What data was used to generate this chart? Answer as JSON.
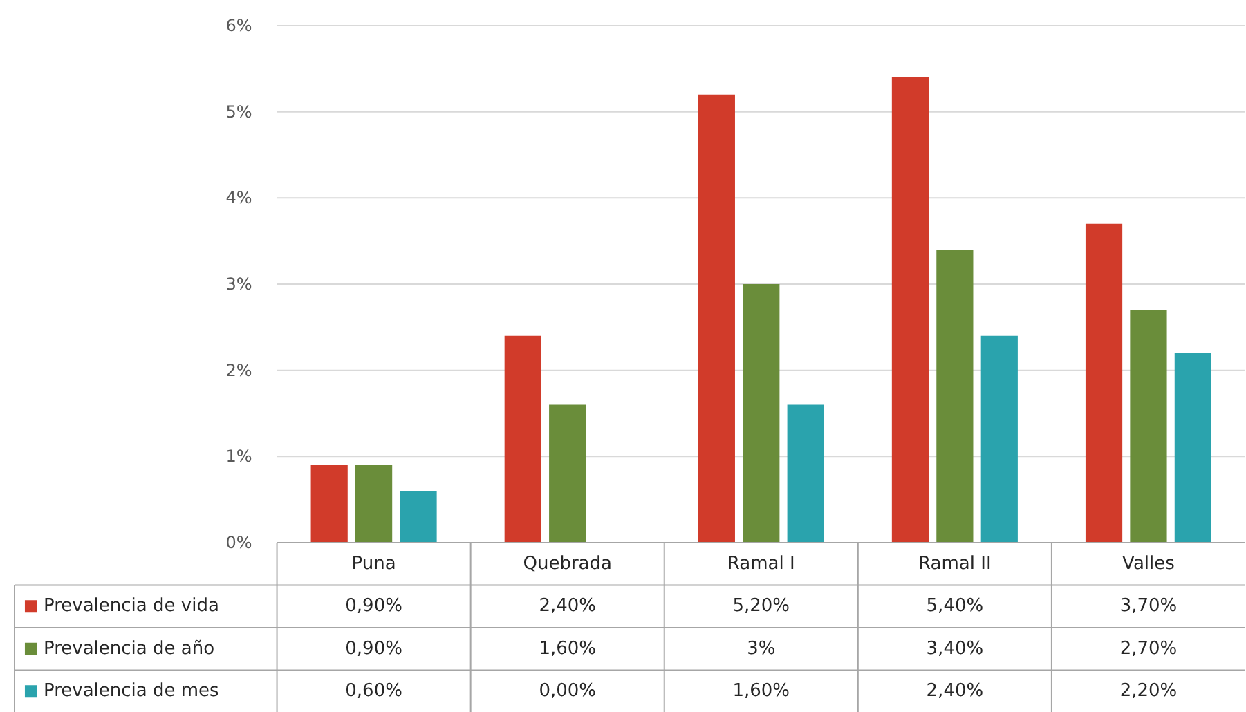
{
  "chart_data": {
    "type": "bar",
    "categories": [
      "Puna",
      "Quebrada",
      "Ramal I",
      "Ramal II",
      "Valles"
    ],
    "series": [
      {
        "name": "Prevalencia de vida",
        "color": "#d13b2a",
        "values": [
          0.9,
          2.4,
          5.2,
          5.4,
          3.7
        ],
        "value_labels": [
          "0,90%",
          "2,40%",
          "5,20%",
          "5,40%",
          "3,70%"
        ]
      },
      {
        "name": "Prevalencia de año",
        "color": "#6a8d3a",
        "values": [
          0.9,
          1.6,
          3,
          3.4,
          2.7
        ],
        "value_labels": [
          "0,90%",
          "1,60%",
          "3%",
          "3,40%",
          "2,70%"
        ]
      },
      {
        "name": "Prevalencia de mes",
        "color": "#2aa3ad",
        "values": [
          0.6,
          0.0,
          1.6,
          2.4,
          2.2
        ],
        "value_labels": [
          "0,60%",
          "0,00%",
          "1,60%",
          "2,40%",
          "2,20%"
        ]
      }
    ],
    "ylim": [
      0,
      6
    ],
    "yticks": [
      {
        "value": 0,
        "label": "0%"
      },
      {
        "value": 1,
        "label": "1%"
      },
      {
        "value": 2,
        "label": "2%"
      },
      {
        "value": 3,
        "label": "3%"
      },
      {
        "value": 4,
        "label": "4%"
      },
      {
        "value": 5,
        "label": "5%"
      },
      {
        "value": 6,
        "label": "6%"
      }
    ],
    "grid": "y",
    "legend": "bottom left"
  }
}
